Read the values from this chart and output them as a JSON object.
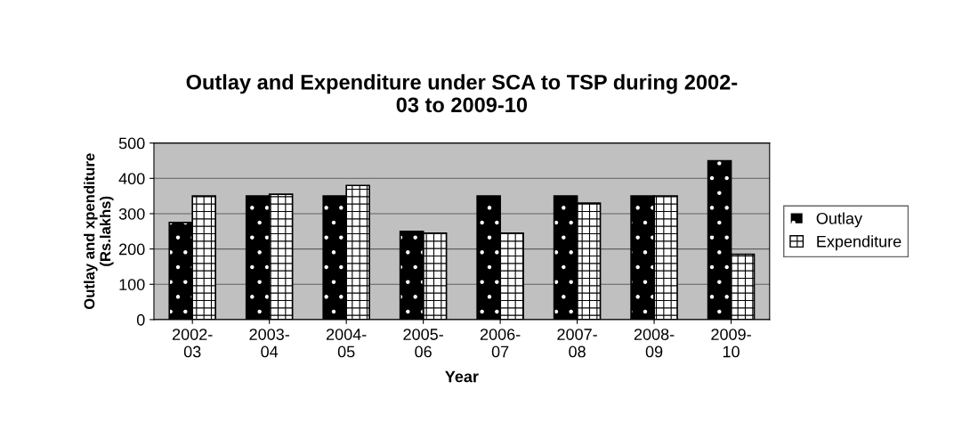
{
  "chart_data": {
    "type": "bar",
    "title": "Outlay and Expenditure under SCA to TSP during 2002-\n03 to 2009-10",
    "xlabel": "Year",
    "ylabel": "Outlay and xpenditure\n(Rs.lakhs)",
    "categories": [
      "2002-\n03",
      "2003-\n04",
      "2004-\n05",
      "2005-\n06",
      "2006-\n07",
      "2007-\n08",
      "2008-\n09",
      "2009-\n10"
    ],
    "series": [
      {
        "name": "Outlay",
        "color": "#000000",
        "values": [
          275,
          350,
          350,
          250,
          350,
          350,
          350,
          450
        ]
      },
      {
        "name": "Expenditure",
        "color": "#ffffff",
        "values": [
          350,
          355,
          380,
          245,
          245,
          330,
          350,
          185
        ]
      }
    ],
    "ylim": [
      0,
      500
    ],
    "yticks": [
      0,
      100,
      200,
      300,
      400,
      500
    ],
    "grid": "y",
    "legend": "right"
  }
}
